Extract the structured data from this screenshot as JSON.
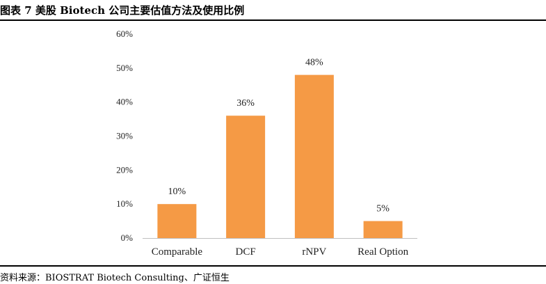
{
  "figure_title": "图表 7  美股 Biotech 公司主要估值方法及使用比例",
  "source_note": "资料来源：BIOSTRAT Biotech Consulting、广证恒生",
  "chart_data": {
    "type": "bar",
    "title": "",
    "xlabel": "",
    "ylabel": "",
    "categories": [
      "Comparable",
      "DCF",
      "rNPV",
      "Real Option"
    ],
    "values": [
      10,
      36,
      48,
      5
    ],
    "value_labels": [
      "10%",
      "36%",
      "48%",
      "5%"
    ],
    "ylim": [
      0,
      60
    ],
    "yticks": [
      "0%",
      "10%",
      "20%",
      "30%",
      "40%",
      "50%",
      "60%"
    ],
    "bar_color": "#F59A45",
    "axis_color": "#bfbfbf",
    "grid": false,
    "legend": "none"
  }
}
